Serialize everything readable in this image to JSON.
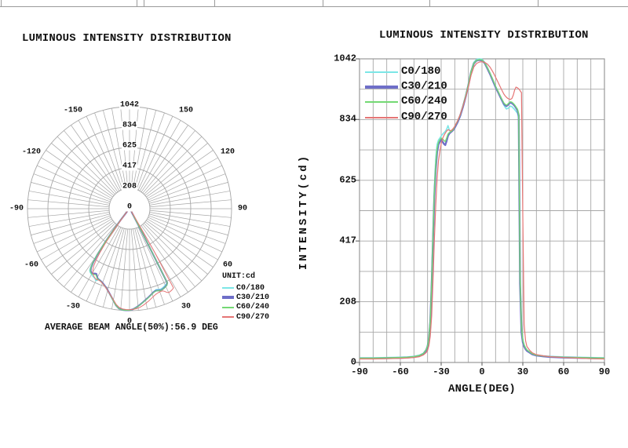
{
  "page": {
    "background": "#ffffff"
  },
  "polar_chart": {
    "title": "LUMINOUS INTENSITY DISTRIBUTION",
    "unit_label": "UNIT:cd",
    "ring_labels": [
      "1042",
      "834",
      "625",
      "417",
      "208",
      "0"
    ],
    "angle_labels": [
      "-150",
      "-120",
      "-90",
      "-60",
      "-30",
      "0",
      "30",
      "60",
      "90",
      "120",
      "150"
    ],
    "average_beam_angle_text": "AVERAGE BEAM ANGLE(50%):56.9 DEG"
  },
  "cartesian_chart": {
    "title": "LUMINOUS INTENSITY DISTRIBUTION",
    "x_axis_label": "ANGLE(DEG)",
    "y_axis_label": "INTENSITY(cd)",
    "y_tick_labels": [
      "1042",
      "834",
      "625",
      "417",
      "208",
      "0"
    ],
    "x_tick_labels": [
      "-90",
      "-60",
      "-30",
      "0",
      "30",
      "60",
      "90"
    ]
  },
  "legend": {
    "entries": [
      {
        "label": "C0/180",
        "color": "#7ce6e6"
      },
      {
        "label": "C30/210",
        "color": "#6e6ec8"
      },
      {
        "label": "C60/240",
        "color": "#74d974"
      },
      {
        "label": "C90/270",
        "color": "#e57575"
      }
    ]
  },
  "chart_data": {
    "type": "line",
    "views": [
      "polar",
      "cartesian"
    ],
    "title": "LUMINOUS INTENSITY DISTRIBUTION",
    "xlabel": "ANGLE(DEG)",
    "ylabel": "INTENSITY(cd)",
    "unit": "cd",
    "xlim": [
      -90,
      90
    ],
    "ylim": [
      0,
      1042
    ],
    "x_ticks": [
      -90,
      -60,
      -30,
      0,
      30,
      60,
      90
    ],
    "y_ticks": [
      0,
      208,
      417,
      625,
      834,
      1042
    ],
    "grid": true,
    "legend_position": "top-left",
    "polar_view": {
      "ring_values": [
        208,
        417,
        625,
        834,
        1042
      ],
      "angle_tick_labels_deg": [
        -150,
        -120,
        -90,
        -60,
        -30,
        0,
        30,
        60,
        90,
        120,
        150
      ],
      "spoke_step_deg": 5,
      "average_beam_angle_50pct_deg": 56.9
    },
    "angles_deg": [
      -90,
      -80,
      -70,
      -60,
      -55,
      -50,
      -46,
      -43,
      -41,
      -40,
      -39,
      -38,
      -37,
      -36,
      -35,
      -34,
      -33,
      -32,
      -31,
      -30,
      -29,
      -28,
      -27,
      -26,
      -25,
      -24,
      -23,
      -22,
      -21,
      -20,
      -18,
      -16,
      -14,
      -12,
      -10,
      -8,
      -6,
      -4,
      -2,
      0,
      2,
      4,
      6,
      8,
      10,
      12,
      14,
      16,
      17,
      18,
      19,
      20,
      21,
      22,
      23,
      24,
      25,
      26,
      27,
      28,
      29,
      30,
      31,
      32,
      33,
      35,
      37,
      40,
      45,
      50,
      60,
      70,
      80,
      90
    ],
    "series": [
      {
        "name": "C0/180",
        "color": "#7ce6e6",
        "values": [
          16,
          16,
          17,
          18,
          19,
          21,
          25,
          32,
          45,
          60,
          90,
          150,
          290,
          450,
          600,
          700,
          748,
          763,
          770,
          777,
          783,
          788,
          793,
          800,
          813,
          798,
          790,
          794,
          800,
          808,
          826,
          850,
          880,
          915,
          956,
          1000,
          1030,
          1040,
          1042,
          1041,
          1030,
          1012,
          991,
          968,
          946,
          926,
          905,
          884,
          876,
          870,
          872,
          876,
          880,
          878,
          873,
          868,
          862,
          856,
          838,
          310,
          115,
          78,
          60,
          50,
          44,
          36,
          30,
          26,
          23,
          21,
          19,
          18,
          17,
          16
        ]
      },
      {
        "name": "C30/210",
        "color": "#6e6ec8",
        "values": [
          14,
          14,
          15,
          16,
          17,
          19,
          23,
          30,
          42,
          55,
          82,
          135,
          265,
          420,
          570,
          665,
          722,
          748,
          758,
          765,
          758,
          750,
          746,
          760,
          778,
          786,
          790,
          794,
          799,
          806,
          824,
          847,
          877,
          912,
          952,
          996,
          1026,
          1036,
          1038,
          1037,
          1027,
          1009,
          989,
          967,
          945,
          926,
          906,
          888,
          883,
          880,
          884,
          889,
          892,
          890,
          886,
          881,
          874,
          866,
          848,
          270,
          105,
          70,
          55,
          46,
          40,
          34,
          28,
          24,
          21,
          19,
          17,
          16,
          15,
          14
        ]
      },
      {
        "name": "C60/240",
        "color": "#74d974",
        "values": [
          15,
          15,
          16,
          17,
          18,
          20,
          24,
          31,
          44,
          58,
          86,
          142,
          278,
          435,
          585,
          680,
          735,
          755,
          764,
          770,
          768,
          762,
          758,
          770,
          784,
          789,
          792,
          796,
          801,
          810,
          828,
          850,
          880,
          915,
          954,
          998,
          1027,
          1037,
          1039,
          1038,
          1028,
          1011,
          992,
          970,
          948,
          929,
          909,
          891,
          886,
          883,
          887,
          892,
          895,
          893,
          889,
          884,
          877,
          870,
          852,
          290,
          118,
          76,
          60,
          50,
          43,
          36,
          30,
          25,
          22,
          20,
          18,
          17,
          16,
          15
        ]
      },
      {
        "name": "C90/270",
        "color": "#e57575",
        "values": [
          12,
          12,
          13,
          14,
          15,
          17,
          20,
          26,
          34,
          42,
          58,
          90,
          160,
          280,
          420,
          540,
          630,
          690,
          725,
          750,
          768,
          779,
          787,
          794,
          799,
          797,
          795,
          799,
          804,
          811,
          829,
          851,
          879,
          910,
          946,
          986,
          1014,
          1026,
          1031,
          1032,
          1030,
          1024,
          1013,
          997,
          979,
          960,
          940,
          922,
          915,
          910,
          906,
          904,
          903,
          906,
          918,
          935,
          945,
          943,
          939,
          933,
          926,
          500,
          130,
          75,
          55,
          42,
          33,
          27,
          23,
          20,
          17,
          15,
          13,
          12
        ]
      }
    ]
  }
}
